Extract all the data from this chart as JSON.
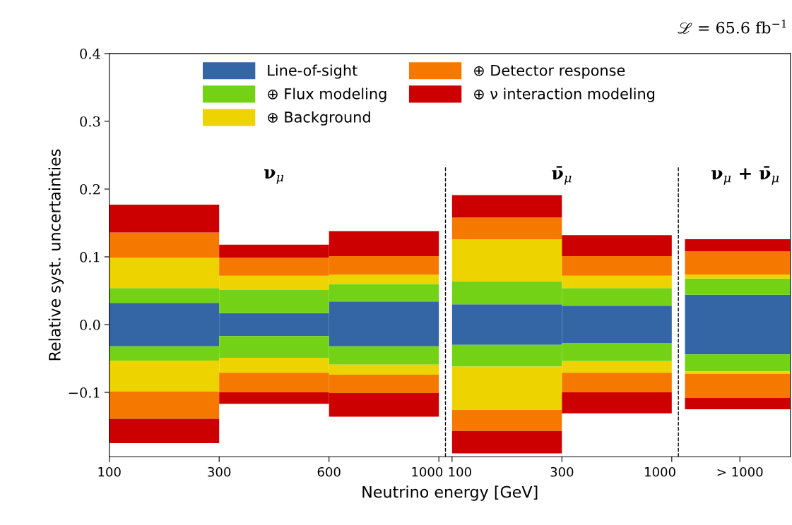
{
  "chart_data": {
    "type": "bar",
    "stacked": true,
    "xlabel": "Neutrino energy [GeV]",
    "ylabel": "Relative syst. uncertainties",
    "categories": [
      null,
      null,
      null,
      null,
      null,
      null
    ],
    "series": [
      {
        "name": "Line-of-sight",
        "color": "#3465a4",
        "values": [
          0.032,
          0.017,
          0.034,
          0.03,
          0.028,
          0.044
        ]
      },
      {
        "color": "#3465a4",
        "values": [
          -0.032,
          -0.017,
          -0.032,
          -0.03,
          -0.027,
          -0.044
        ]
      },
      {
        "name": "⊕ Flux modeling",
        "color": "#73d216",
        "values": [
          0.022,
          0.034,
          0.026,
          0.034,
          0.026,
          0.024
        ]
      },
      {
        "color": "#73d216",
        "values": [
          -0.021,
          -0.032,
          -0.027,
          -0.032,
          -0.027,
          -0.025
        ]
      },
      {
        "name": "⊕ Background",
        "color": "#edd400",
        "values": [
          0.045,
          0.021,
          0.014,
          0.062,
          0.018,
          0.006
        ]
      },
      {
        "color": "#edd400",
        "values": [
          -0.046,
          -0.022,
          -0.015,
          -0.064,
          -0.017,
          -0.004
        ]
      },
      {
        "name": "⊕ Detector response",
        "color": "#f57900",
        "values": [
          0.037,
          0.027,
          0.027,
          0.032,
          0.029,
          0.034
        ]
      },
      {
        "color": "#f57900",
        "values": [
          -0.04,
          -0.029,
          -0.027,
          -0.031,
          -0.029,
          -0.035
        ]
      },
      {
        "name": "⊕ ν interaction modeling",
        "color": "#cc0000",
        "values": [
          0.041,
          0.019,
          0.037,
          0.033,
          0.031,
          0.018
        ]
      },
      {
        "color": "#cc0000",
        "values": [
          -0.036,
          -0.017,
          -0.035,
          -0.033,
          -0.031,
          -0.017
        ]
      }
    ],
    "ylim": [
      -0.195,
      0.4
    ],
    "yticks": [
      {
        "value": -0.1,
        "label": "−0.1"
      },
      {
        "value": 0,
        "label": "0.0"
      },
      {
        "value": 0.1,
        "label": "0.1"
      },
      {
        "value": 0.2,
        "label": "0.2"
      },
      {
        "value": 0.3,
        "label": "0.3"
      },
      {
        "value": 0.4,
        "label": "0.4"
      }
    ],
    "annotations": [
      "ℒ = 65.6 fb$^{−1}$",
      "ν$_{μ}$",
      "ν̄$_{μ}$",
      "ν$_{μ}$ + ν̄$_{μ}$",
      "100",
      "300",
      "600",
      "1000",
      "100",
      "300",
      "1000",
      "> 1000"
    ],
    "legend": "top",
    "grid": false
  }
}
